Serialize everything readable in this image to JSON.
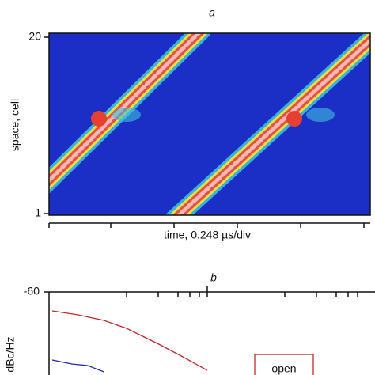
{
  "chart_data": [
    {
      "type": "heatmap",
      "title": "a",
      "xlabel": "time, 0.248 µs/div",
      "ylabel": "space, cell",
      "ylim": [
        1,
        20
      ],
      "yticks": [
        1,
        20
      ]
    },
    {
      "type": "line",
      "title": "b",
      "ylabel": "dBc/Hz",
      "xlim": [
        0,
        1
      ],
      "ylim": [
        -100,
        -60
      ],
      "yticks": [
        -60
      ],
      "series": [
        {
          "name": "open",
          "color": "#c0282a",
          "x": [
            0.01,
            0.09,
            0.17,
            0.24,
            0.34,
            0.41,
            0.49
          ],
          "values": [
            -64.8,
            -65.8,
            -67.2,
            -69.2,
            -73.2,
            -76.2,
            -79.8
          ]
        },
        {
          "color": "#1a2aa8",
          "x": [
            0.01,
            0.07,
            0.12,
            0.17
          ],
          "values": [
            -77.2,
            -78.2,
            -78.6,
            -80.2
          ]
        }
      ]
    }
  ]
}
